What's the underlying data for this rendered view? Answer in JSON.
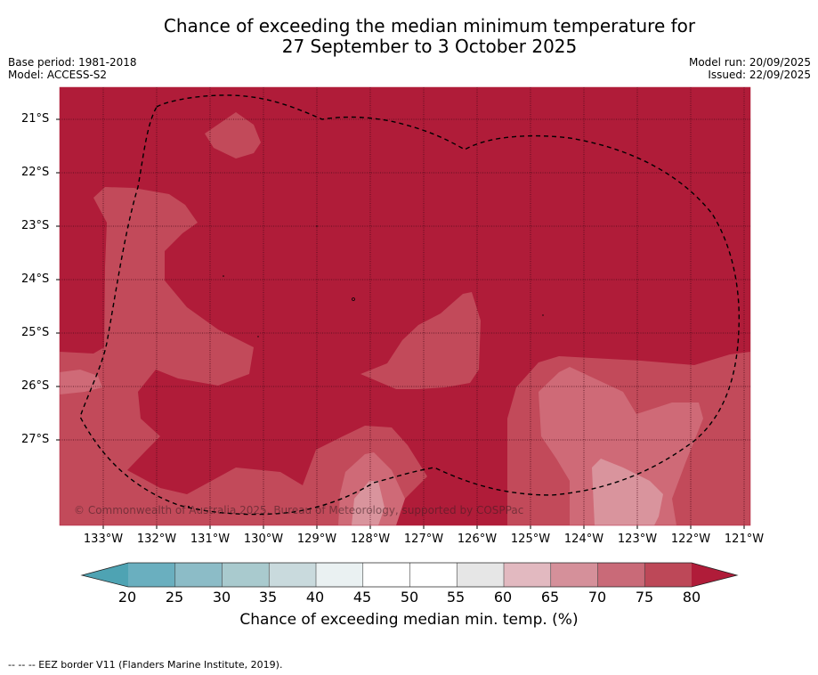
{
  "title": {
    "line1": "Chance of exceeding the median minimum temperature for",
    "line2": "27 September to 3 October 2025"
  },
  "meta": {
    "base_period": "Base period: 1981-2018",
    "model": "Model: ACCESS-S2",
    "model_run": "Model run: 20/09/2025",
    "issued": "Issued: 22/09/2025"
  },
  "map": {
    "latitude_labels": [
      "21°S",
      "22°S",
      "23°S",
      "24°S",
      "25°S",
      "26°S",
      "27°S"
    ],
    "longitude_labels": [
      "133°W",
      "132°W",
      "131°W",
      "130°W",
      "129°W",
      "128°W",
      "127°W",
      "126°W",
      "125°W",
      "124°W",
      "123°W",
      "122°W",
      "121°W"
    ],
    "copyright": "© Commonwealth of Australia 2025, Bureau of Meteorology, supported by COSPPac"
  },
  "colorbar": {
    "ticks": [
      "20",
      "25",
      "30",
      "35",
      "40",
      "45",
      "50",
      "55",
      "60",
      "65",
      "70",
      "75",
      "80"
    ],
    "label": "Chance of exceeding median min. temp. (%)",
    "colors": {
      "under": "#4ea3b3",
      "bins": [
        "#6aafbf",
        "#8cbcc7",
        "#a9cace",
        "#c9dadd",
        "#eaf1f2",
        "#ffffff",
        "#ffffff",
        "#e6e6e6",
        "#e2b9c0",
        "#d5909a",
        "#c96a78",
        "#bd4858"
      ],
      "over": "#b01c39"
    }
  },
  "legend": {
    "eez": "--  --  -- EEZ border V11 (Flanders Marine Institute, 2019)."
  }
}
